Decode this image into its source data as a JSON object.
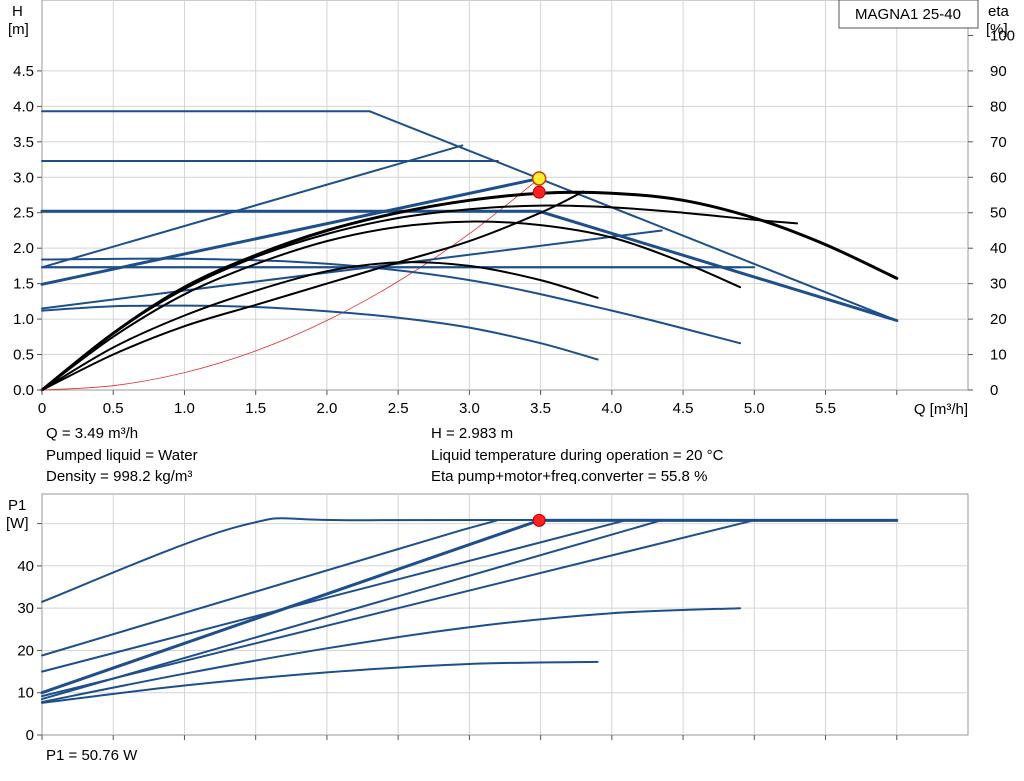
{
  "pump_model": "MAGNA1 25-40",
  "info": {
    "q": "Q = 3.49 m³/h",
    "pumped_liquid": "Pumped liquid = Water",
    "density": "Density = 998.2 kg/m³",
    "h": "H = 2.983 m",
    "liquid_temp": "Liquid temperature during operation = 20 °C",
    "eta": "Eta pump+motor+freq.converter = 55.8 %",
    "p1": "P1 = 50.76 W"
  },
  "chart_data": [
    {
      "type": "line",
      "id": "qh",
      "xlabel": "Q [m³/h]",
      "ylabel_line1": "H",
      "ylabel_line2": "[m]",
      "y2label_line1": "eta",
      "y2label_line2": "[%]",
      "xlim": [
        0,
        6.5
      ],
      "ylim": [
        0,
        5.5
      ],
      "y2lim": [
        0,
        110
      ],
      "x_ticks": [
        "0",
        "0.5",
        "1.0",
        "1.5",
        "2.0",
        "2.5",
        "3.0",
        "3.5",
        "4.0",
        "4.5",
        "5.0",
        "5.5"
      ],
      "y_ticks": [
        "0.0",
        "0.5",
        "1.0",
        "1.5",
        "2.0",
        "2.5",
        "3.0",
        "3.5",
        "4.0",
        "4.5"
      ],
      "y2_ticks": [
        "0",
        "10",
        "20",
        "30",
        "40",
        "50",
        "60",
        "70",
        "80",
        "90",
        "100"
      ],
      "grid": true,
      "colors": {
        "head": "#1e4f8a",
        "eta": "#000000",
        "system": "#e03030",
        "point_fill": "#ffee33",
        "point_red": "#ff2020"
      },
      "head_curves": [
        {
          "width": 2,
          "x": [
            0,
            2.3,
            6.0
          ],
          "y": [
            3.93,
            3.93,
            0.98
          ]
        },
        {
          "width": 2,
          "x": [
            0,
            3.2
          ],
          "y": [
            3.23,
            3.23
          ]
        },
        {
          "width": 3,
          "x": [
            0,
            3.49,
            6.0
          ],
          "y": [
            2.52,
            2.52,
            0.98
          ]
        },
        {
          "width": 2,
          "x": [
            0,
            5.0
          ],
          "y": [
            1.73,
            1.73
          ]
        },
        {
          "width": 2,
          "x": [
            0,
            2.95
          ],
          "y": [
            1.73,
            3.45
          ]
        },
        {
          "width": 3,
          "x": [
            0,
            3.49
          ],
          "y": [
            1.49,
            2.983
          ]
        },
        {
          "width": 2,
          "x": [
            0,
            4.35
          ],
          "y": [
            1.15,
            2.25
          ]
        },
        {
          "width": 2,
          "x": [
            0,
            4.9
          ],
          "y": [
            1.73,
            1.73
          ]
        },
        {
          "width": 2,
          "x": [
            0,
            1.0,
            2.0,
            3.0,
            4.0,
            4.9
          ],
          "y": [
            1.84,
            1.85,
            1.78,
            1.55,
            1.12,
            0.66
          ]
        },
        {
          "width": 2,
          "x": [
            0,
            0.5,
            1.0,
            1.5,
            2.0,
            2.5,
            3.0,
            3.5,
            3.9
          ],
          "y": [
            1.12,
            1.18,
            1.19,
            1.17,
            1.11,
            1.02,
            0.88,
            0.66,
            0.43
          ]
        }
      ],
      "eta_curves": [
        {
          "width": 3,
          "x": [
            0,
            0.5,
            1.0,
            1.5,
            2.0,
            2.5,
            3.0,
            3.5,
            4.0,
            4.5,
            5.0,
            5.5,
            6.0
          ],
          "y": [
            0,
            16,
            29,
            38,
            45,
            50,
            53.5,
            55.5,
            55.5,
            53.5,
            48.5,
            41,
            31.5
          ]
        },
        {
          "width": 2,
          "x": [
            0,
            0.5,
            1.0,
            1.5,
            2.0,
            2.5,
            3.0,
            3.5,
            4.0,
            4.5,
            5.0,
            5.3
          ],
          "y": [
            0,
            16,
            28.5,
            37.5,
            44,
            48.5,
            51,
            52,
            51.5,
            50,
            48,
            47
          ]
        },
        {
          "width": 2,
          "x": [
            0,
            0.5,
            1.0,
            1.5,
            2.0,
            2.5,
            3.0,
            3.5,
            4.0,
            4.5,
            4.9
          ],
          "y": [
            0,
            15,
            27,
            35.5,
            42,
            46,
            47.5,
            46.5,
            43,
            36,
            29
          ]
        },
        {
          "width": 2,
          "x": [
            0,
            0.5,
            1.0,
            1.5,
            2.0,
            2.5,
            3.0,
            3.5,
            3.9
          ],
          "y": [
            0,
            12,
            21,
            28,
            33.5,
            36,
            35,
            31,
            26
          ]
        },
        {
          "width": 2,
          "x": [
            0,
            0.5,
            1.0,
            1.5,
            2.0,
            2.5,
            3.0,
            3.5,
            3.8
          ],
          "y": [
            0,
            10,
            18,
            24,
            30,
            36,
            42,
            50,
            56
          ]
        }
      ],
      "system_curve": {
        "x": [
          0,
          0.5,
          1.0,
          1.5,
          2.0,
          2.5,
          3.0,
          3.49
        ],
        "y": [
          0,
          0.061,
          0.245,
          0.551,
          0.98,
          1.531,
          2.204,
          2.983
        ]
      },
      "operating_point": {
        "x": 3.49,
        "y": 2.983
      },
      "eta_point": {
        "x": 3.49,
        "y": 55.8
      }
    },
    {
      "type": "line",
      "id": "power",
      "ylabel_line1": "P1",
      "ylabel_line2": "[W]",
      "xlim": [
        0,
        6.5
      ],
      "ylim": [
        0,
        57
      ],
      "y_ticks": [
        "0",
        "10",
        "20",
        "30",
        "40"
      ],
      "grid": true,
      "colors": {
        "line": "#1e4f8a",
        "point_red": "#ff2020"
      },
      "curves": [
        {
          "width": 2,
          "x": [
            0,
            1.4,
            2.3,
            6.0
          ],
          "y": [
            31.5,
            49.5,
            50.8,
            50.8
          ]
        },
        {
          "width": 2,
          "x": [
            0,
            2.95,
            3.2
          ],
          "y": [
            18.8,
            48.5,
            50.8
          ]
        },
        {
          "width": 3,
          "x": [
            0,
            3.49,
            6.0
          ],
          "y": [
            10.0,
            50.76,
            50.76
          ]
        },
        {
          "width": 2,
          "x": [
            0,
            4.1
          ],
          "y": [
            15.0,
            50.8
          ]
        },
        {
          "width": 2,
          "x": [
            0,
            4.35
          ],
          "y": [
            8.5,
            50.8
          ]
        },
        {
          "width": 2,
          "x": [
            0,
            5.0
          ],
          "y": [
            9.2,
            50.8
          ]
        },
        {
          "width": 2,
          "x": [
            0,
            1.0,
            2.0,
            3.0,
            4.0,
            4.9
          ],
          "y": [
            7.8,
            14.5,
            20.5,
            25.5,
            28.8,
            30.0
          ]
        },
        {
          "width": 2,
          "x": [
            0,
            1.0,
            2.0,
            3.0,
            3.9
          ],
          "y": [
            7.6,
            11.7,
            14.8,
            16.8,
            17.3
          ]
        }
      ],
      "operating_point": {
        "x": 3.49,
        "y": 50.76
      }
    }
  ]
}
